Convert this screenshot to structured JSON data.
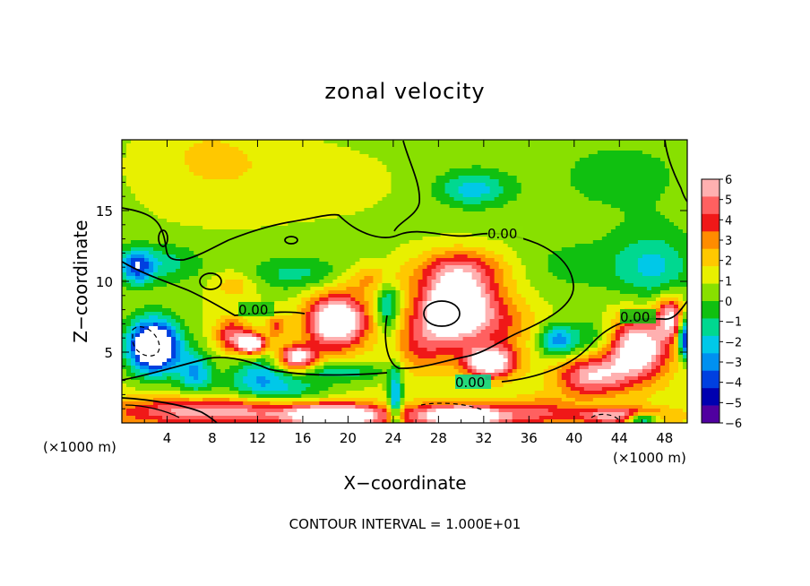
{
  "chart_data": {
    "type": "heatmap",
    "title": "zonal velocity",
    "xlabel": "X−coordinate",
    "ylabel": "Z−coordinate",
    "x_unit_left": "(×1000 m)",
    "x_unit_right": "(×1000 m)",
    "footer": "CONTOUR INTERVAL = 1.000E+01",
    "xlim": [
      0,
      50
    ],
    "ylim": [
      0,
      20
    ],
    "x_ticks": [
      "4",
      "8",
      "12",
      "16",
      "20",
      "24",
      "28",
      "32",
      "36",
      "40",
      "44",
      "48"
    ],
    "y_ticks": [
      "5",
      "10",
      "15"
    ],
    "colorbar": {
      "range": [
        -6,
        6
      ],
      "ticks": [
        "6",
        "5",
        "4",
        "3",
        "2",
        "1",
        "0",
        "−1",
        "−2",
        "−3",
        "−4",
        "−5",
        "−6"
      ],
      "colors": [
        "#ffb0b0",
        "#ff6060",
        "#f01818",
        "#ff8c00",
        "#ffc800",
        "#e8f000",
        "#88e000",
        "#10c010",
        "#00d890",
        "#00c8e8",
        "#0090f0",
        "#0040e0",
        "#0000b0",
        "#5000a0"
      ]
    },
    "contour_labels": [
      "0.00",
      "0.00",
      "0.00",
      "0.00"
    ],
    "blobs": [
      {
        "x": 7.5,
        "y": 19.0,
        "sx": 7,
        "sy": 4,
        "v": 1.6
      },
      {
        "x": 18,
        "y": 17.5,
        "sx": 8,
        "sy": 3,
        "v": 0.8
      },
      {
        "x": 31,
        "y": 16.5,
        "sx": 3,
        "sy": 1.2,
        "v": -3.2
      },
      {
        "x": 44,
        "y": 17,
        "sx": 7,
        "sy": 3,
        "v": -0.8
      },
      {
        "x": 47,
        "y": 11,
        "sx": 3.5,
        "sy": 2.5,
        "v": -3
      },
      {
        "x": 40,
        "y": 11,
        "sx": 5,
        "sy": 2,
        "v": -1.2
      },
      {
        "x": 3.5,
        "y": 11.2,
        "sx": 3.5,
        "sy": 1.4,
        "v": -2.4
      },
      {
        "x": 1.3,
        "y": 11,
        "sx": 1.4,
        "sy": 1.2,
        "v": -4.5
      },
      {
        "x": 15.5,
        "y": 10.5,
        "sx": 5,
        "sy": 1.2,
        "v": -2.2
      },
      {
        "x": 10,
        "y": 9.8,
        "sx": 2,
        "sy": 1,
        "v": 2
      },
      {
        "x": 22,
        "y": 10.2,
        "sx": 2.5,
        "sy": 1,
        "v": 2.5
      },
      {
        "x": 30,
        "y": 10.8,
        "sx": 4,
        "sy": 1.5,
        "v": 4.2
      },
      {
        "x": 29.5,
        "y": 8,
        "sx": 3.2,
        "sy": 2.2,
        "v": 10
      },
      {
        "x": 32.5,
        "y": 4.3,
        "sx": 2.2,
        "sy": 1.1,
        "v": 8
      },
      {
        "x": 26.5,
        "y": 5.5,
        "sx": 2.6,
        "sy": 2,
        "v": 3
      },
      {
        "x": 34,
        "y": 7,
        "sx": 2.8,
        "sy": 2.2,
        "v": 2.2
      },
      {
        "x": 19,
        "y": 7.2,
        "sx": 2.6,
        "sy": 1.9,
        "v": 9
      },
      {
        "x": 15.5,
        "y": 4.6,
        "sx": 1.6,
        "sy": 0.9,
        "v": 7
      },
      {
        "x": 23.5,
        "y": 8.2,
        "sx": 1,
        "sy": 2,
        "v": -3.5
      },
      {
        "x": 9.8,
        "y": 6.2,
        "sx": 1.5,
        "sy": 1.2,
        "v": 4.5
      },
      {
        "x": 11.5,
        "y": 5.6,
        "sx": 1.2,
        "sy": 0.7,
        "v": 8
      },
      {
        "x": 13.7,
        "y": 6.8,
        "sx": 0.9,
        "sy": 0.8,
        "v": 3.2
      },
      {
        "x": 2.8,
        "y": 5.4,
        "sx": 2.3,
        "sy": 1.9,
        "v": -10
      },
      {
        "x": 6.5,
        "y": 3.5,
        "sx": 1.6,
        "sy": 1.5,
        "v": -4.2
      },
      {
        "x": 12,
        "y": 3.5,
        "sx": 2.5,
        "sy": 1.2,
        "v": -3.2
      },
      {
        "x": 19.5,
        "y": 3.6,
        "sx": 4,
        "sy": 0.7,
        "v": -2.8
      },
      {
        "x": 14,
        "y": 2.3,
        "sx": 4.5,
        "sy": 1,
        "v": -3.2
      },
      {
        "x": 38.5,
        "y": 5.8,
        "sx": 1.6,
        "sy": 1.1,
        "v": -4.5
      },
      {
        "x": 42,
        "y": 6,
        "sx": 2.5,
        "sy": 1.5,
        "v": -2.5
      },
      {
        "x": 45.5,
        "y": 5.3,
        "sx": 2.8,
        "sy": 2.2,
        "v": 8
      },
      {
        "x": 41.5,
        "y": 3.3,
        "sx": 3,
        "sy": 1.4,
        "v": 5.5
      },
      {
        "x": 48.5,
        "y": 7.5,
        "sx": 1.2,
        "sy": 1.4,
        "v": 6
      },
      {
        "x": 49.8,
        "y": 6,
        "sx": 0.6,
        "sy": 1.5,
        "v": -7
      },
      {
        "x": 8,
        "y": 0.8,
        "sx": 9,
        "sy": 1,
        "v": 5.5
      },
      {
        "x": 19,
        "y": 0.5,
        "sx": 4,
        "sy": 0.8,
        "v": 9
      },
      {
        "x": 30,
        "y": 0.5,
        "sx": 4.5,
        "sy": 0.8,
        "v": 9
      },
      {
        "x": 44,
        "y": 0.5,
        "sx": 4,
        "sy": 0.6,
        "v": 6
      },
      {
        "x": 37,
        "y": 0.8,
        "sx": 3,
        "sy": 1,
        "v": 3
      },
      {
        "x": 24.2,
        "y": 1.5,
        "sx": 0.6,
        "sy": 2.5,
        "v": -5
      },
      {
        "x": 46,
        "y": 0.3,
        "sx": 1.5,
        "sy": 0.4,
        "v": -7
      }
    ]
  }
}
